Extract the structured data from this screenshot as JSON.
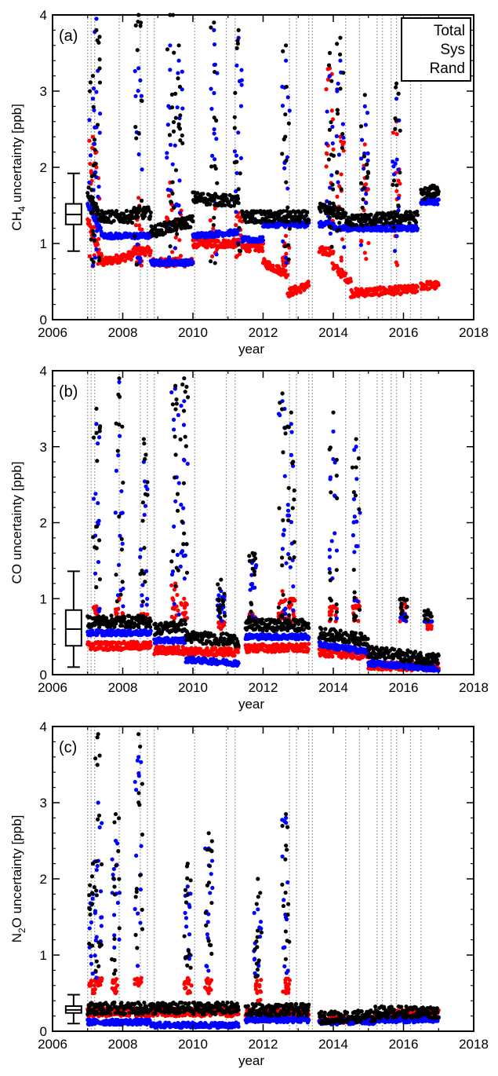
{
  "figure": {
    "colors": {
      "total": "#000000",
      "sys": "#0000ff",
      "rand": "#ff0000",
      "gap_lines": "#a8a8a8",
      "axes": "#000000"
    }
  },
  "chart_data": [
    {
      "type": "scatter",
      "panel_label": "(a)",
      "ylabel_parts": [
        "CH",
        "4",
        " uncertainty [ppb]"
      ],
      "xlabel": "year",
      "xlim": [
        2006,
        2018
      ],
      "ylim": [
        0,
        4
      ],
      "xticks": [
        2006,
        2008,
        2010,
        2012,
        2014,
        2016,
        2018
      ],
      "yticks": [
        0,
        1,
        2,
        3,
        4
      ],
      "legend": {
        "placement": "top-right",
        "entries": [
          {
            "label": "Total",
            "color": "#000000"
          },
          {
            "label": "Sys",
            "color": "#0000ff"
          },
          {
            "label": "Rand",
            "color": "#ff0000"
          }
        ]
      },
      "boxplot": {
        "x": 2006.6,
        "whisker_low": 0.9,
        "q1": 1.25,
        "median": 1.38,
        "q3": 1.52,
        "whisker_high": 1.92
      },
      "segments": [
        {
          "x": [
            2007.0,
            2007.4
          ],
          "total": [
            1.7,
            1.3
          ],
          "sys": [
            1.5,
            1.15
          ],
          "rand": [
            1.3,
            0.8
          ]
        },
        {
          "x": [
            2007.4,
            2008.3
          ],
          "total": [
            1.35,
            1.35
          ],
          "sys": [
            1.1,
            1.1
          ],
          "rand": [
            0.75,
            0.85
          ]
        },
        {
          "x": [
            2008.3,
            2008.8
          ],
          "total": [
            1.4,
            1.4
          ],
          "sys": [
            1.1,
            1.1
          ],
          "rand": [
            0.9,
            0.9
          ]
        },
        {
          "x": [
            2008.8,
            2010.0
          ],
          "total": [
            1.15,
            1.3
          ],
          "sys": [
            0.75,
            0.75
          ],
          "rand": [
            0.75,
            0.75
          ]
        },
        {
          "x": [
            2010.0,
            2011.3
          ],
          "total": [
            1.6,
            1.55
          ],
          "sys": [
            1.1,
            1.15
          ],
          "rand": [
            1.0,
            1.0
          ]
        },
        {
          "x": [
            2011.4,
            2012.0
          ],
          "total": [
            1.35,
            1.35
          ],
          "sys": [
            1.05,
            1.05
          ],
          "rand": [
            0.95,
            0.95
          ]
        },
        {
          "x": [
            2012.0,
            2012.7
          ],
          "total": [
            1.35,
            1.35
          ],
          "sys": [
            1.25,
            1.25
          ],
          "rand": [
            0.75,
            0.6
          ]
        },
        {
          "x": [
            2012.7,
            2013.3
          ],
          "total": [
            1.35,
            1.35
          ],
          "sys": [
            1.25,
            1.25
          ],
          "rand": [
            0.35,
            0.45
          ]
        },
        {
          "x": [
            2013.6,
            2014.0
          ],
          "total": [
            1.45,
            1.4
          ],
          "sys": [
            1.25,
            1.25
          ],
          "rand": [
            0.9,
            0.9
          ]
        },
        {
          "x": [
            2014.0,
            2014.5
          ],
          "total": [
            1.45,
            1.3
          ],
          "sys": [
            1.2,
            1.2
          ],
          "rand": [
            0.7,
            0.5
          ]
        },
        {
          "x": [
            2014.5,
            2016.4
          ],
          "total": [
            1.3,
            1.35
          ],
          "sys": [
            1.2,
            1.2
          ],
          "rand": [
            0.35,
            0.4
          ]
        },
        {
          "x": [
            2016.5,
            2017.0
          ],
          "total": [
            1.65,
            1.7
          ],
          "sys": [
            1.55,
            1.55
          ],
          "rand": [
            0.45,
            0.45
          ]
        }
      ],
      "spikes": [
        {
          "x": 2007.15,
          "total": 3.2,
          "sys": 2.9,
          "rand": 2.4
        },
        {
          "x": 2007.25,
          "total": 3.8,
          "sys": 3.95,
          "rand": 2.0
        },
        {
          "x": 2008.45,
          "total": 4.0,
          "sys": 3.3,
          "rand": 1.6
        },
        {
          "x": 2009.35,
          "total": 4.0,
          "sys": 3.6,
          "rand": 1.8
        },
        {
          "x": 2009.6,
          "total": 3.6,
          "sys": 3.4,
          "rand": 1.5
        },
        {
          "x": 2010.6,
          "total": 3.9,
          "sys": 3.8,
          "rand": 1.6
        },
        {
          "x": 2011.3,
          "total": 3.8,
          "sys": 3.7,
          "rand": 1.4
        },
        {
          "x": 2012.65,
          "total": 3.6,
          "sys": 3.4,
          "rand": 1.1
        },
        {
          "x": 2013.9,
          "total": 3.5,
          "sys": 3.2,
          "rand": 3.3
        },
        {
          "x": 2014.2,
          "total": 3.7,
          "sys": 3.4,
          "rand": 2.4
        },
        {
          "x": 2014.9,
          "total": 2.95,
          "sys": 2.8,
          "rand": 2.3
        },
        {
          "x": 2015.8,
          "total": 3.1,
          "sys": 2.9,
          "rand": 2.6
        }
      ],
      "gap_lines": [
        2007.0,
        2007.1,
        2007.2,
        2007.9,
        2008.5,
        2008.7,
        2008.9,
        2010.05,
        2010.95,
        2011.2,
        2012.75,
        2012.95,
        2013.3,
        2013.4,
        2014.35,
        2014.75,
        2015.25,
        2015.4,
        2015.65,
        2015.8,
        2016.2,
        2016.5
      ]
    },
    {
      "type": "scatter",
      "panel_label": "(b)",
      "ylabel_parts": [
        "CO uncertainty [ppb]"
      ],
      "xlabel": "year",
      "xlim": [
        2006,
        2018
      ],
      "ylim": [
        0,
        4
      ],
      "xticks": [
        2006,
        2008,
        2010,
        2012,
        2014,
        2016,
        2018
      ],
      "yticks": [
        0,
        1,
        2,
        3,
        4
      ],
      "boxplot": {
        "x": 2006.6,
        "whisker_low": 0.1,
        "q1": 0.38,
        "median": 0.6,
        "q3": 0.85,
        "whisker_high": 1.36
      },
      "segments": [
        {
          "x": [
            2007.0,
            2008.8
          ],
          "total": [
            0.7,
            0.7
          ],
          "sys": [
            0.55,
            0.55
          ],
          "rand": [
            0.38,
            0.38
          ]
        },
        {
          "x": [
            2008.9,
            2009.8
          ],
          "total": [
            0.6,
            0.65
          ],
          "sys": [
            0.45,
            0.45
          ],
          "rand": [
            0.32,
            0.32
          ]
        },
        {
          "x": [
            2009.8,
            2011.3
          ],
          "total": [
            0.5,
            0.45
          ],
          "sys": [
            0.2,
            0.15
          ],
          "rand": [
            0.3,
            0.3
          ]
        },
        {
          "x": [
            2011.5,
            2013.3
          ],
          "total": [
            0.65,
            0.65
          ],
          "sys": [
            0.5,
            0.5
          ],
          "rand": [
            0.35,
            0.35
          ]
        },
        {
          "x": [
            2013.6,
            2015.0
          ],
          "total": [
            0.55,
            0.45
          ],
          "sys": [
            0.4,
            0.3
          ],
          "rand": [
            0.3,
            0.25
          ]
        },
        {
          "x": [
            2015.0,
            2017.0
          ],
          "total": [
            0.3,
            0.2
          ],
          "sys": [
            0.15,
            0.08
          ],
          "rand": [
            0.12,
            0.1
          ]
        }
      ],
      "spikes": [
        {
          "x": 2007.25,
          "total": 3.5,
          "sys": 3.3,
          "rand": 0.9
        },
        {
          "x": 2007.9,
          "total": 3.9,
          "sys": 3.85,
          "rand": 1.0
        },
        {
          "x": 2008.6,
          "total": 3.1,
          "sys": 2.8,
          "rand": 0.8
        },
        {
          "x": 2009.5,
          "total": 3.8,
          "sys": 3.8,
          "rand": 1.2
        },
        {
          "x": 2009.75,
          "total": 3.9,
          "sys": 3.6,
          "rand": 1.0
        },
        {
          "x": 2010.8,
          "total": 1.25,
          "sys": 1.1,
          "rand": 0.6
        },
        {
          "x": 2011.7,
          "total": 1.6,
          "sys": 1.5,
          "rand": 0.8
        },
        {
          "x": 2012.55,
          "total": 3.7,
          "sys": 3.6,
          "rand": 1.1
        },
        {
          "x": 2012.8,
          "total": 3.45,
          "sys": 3.3,
          "rand": 1.0
        },
        {
          "x": 2014.0,
          "total": 3.45,
          "sys": 3.2,
          "rand": 0.9
        },
        {
          "x": 2014.65,
          "total": 3.1,
          "sys": 3.0,
          "rand": 1.0
        },
        {
          "x": 2016.0,
          "total": 1.0,
          "sys": 0.8,
          "rand": 1.0
        },
        {
          "x": 2016.7,
          "total": 0.85,
          "sys": 0.7,
          "rand": 0.6
        }
      ],
      "gap_lines": [
        2007.0,
        2007.1,
        2007.2,
        2007.9,
        2008.5,
        2008.7,
        2008.9,
        2010.05,
        2010.95,
        2011.2,
        2012.75,
        2012.95,
        2013.3,
        2013.4,
        2014.35,
        2014.75,
        2015.25,
        2015.4,
        2015.65,
        2015.8,
        2016.2,
        2016.5
      ]
    },
    {
      "type": "scatter",
      "panel_label": "(c)",
      "ylabel_parts": [
        "N",
        "2",
        "O uncertainty [ppb]"
      ],
      "xlabel": "year",
      "xlim": [
        2006,
        2018
      ],
      "ylim": [
        0,
        4
      ],
      "xticks": [
        2006,
        2008,
        2010,
        2012,
        2014,
        2016,
        2018
      ],
      "yticks": [
        0,
        1,
        2,
        3,
        4
      ],
      "boxplot": {
        "x": 2006.6,
        "whisker_low": 0.1,
        "q1": 0.24,
        "median": 0.28,
        "q3": 0.33,
        "whisker_high": 0.48
      },
      "segments": [
        {
          "x": [
            2007.0,
            2008.8
          ],
          "total": [
            0.3,
            0.3
          ],
          "sys": [
            0.12,
            0.12
          ],
          "rand": [
            0.25,
            0.25
          ]
        },
        {
          "x": [
            2008.8,
            2011.3
          ],
          "total": [
            0.3,
            0.3
          ],
          "sys": [
            0.08,
            0.08
          ],
          "rand": [
            0.25,
            0.25
          ]
        },
        {
          "x": [
            2011.5,
            2013.3
          ],
          "total": [
            0.28,
            0.28
          ],
          "sys": [
            0.15,
            0.15
          ],
          "rand": [
            0.24,
            0.24
          ]
        },
        {
          "x": [
            2013.6,
            2015.2
          ],
          "total": [
            0.18,
            0.2
          ],
          "sys": [
            0.12,
            0.13
          ],
          "rand": [
            0.16,
            0.17
          ]
        },
        {
          "x": [
            2015.2,
            2017.0
          ],
          "total": [
            0.25,
            0.25
          ],
          "sys": [
            0.15,
            0.15
          ],
          "rand": [
            0.22,
            0.24
          ]
        }
      ],
      "spikes": [
        {
          "x": 2007.15,
          "total": 2.2,
          "sys": 1.8,
          "rand": 0.5
        },
        {
          "x": 2007.3,
          "total": 3.9,
          "sys": 3.0,
          "rand": 0.6
        },
        {
          "x": 2007.8,
          "total": 2.85,
          "sys": 2.5,
          "rand": 0.5
        },
        {
          "x": 2008.45,
          "total": 3.9,
          "sys": 3.6,
          "rand": 0.6
        },
        {
          "x": 2009.85,
          "total": 2.2,
          "sys": 1.9,
          "rand": 0.5
        },
        {
          "x": 2010.45,
          "total": 2.6,
          "sys": 2.4,
          "rand": 0.5
        },
        {
          "x": 2011.85,
          "total": 2.0,
          "sys": 1.6,
          "rand": 0.4
        },
        {
          "x": 2012.65,
          "total": 2.85,
          "sys": 2.8,
          "rand": 0.5
        }
      ],
      "gap_lines": [
        2007.0,
        2007.1,
        2007.2,
        2007.9,
        2008.5,
        2008.7,
        2008.9,
        2010.05,
        2010.95,
        2011.2,
        2012.75,
        2012.95,
        2013.3,
        2013.4,
        2014.35,
        2014.75,
        2015.25,
        2015.4,
        2015.65,
        2015.8,
        2016.2,
        2016.5
      ]
    }
  ]
}
